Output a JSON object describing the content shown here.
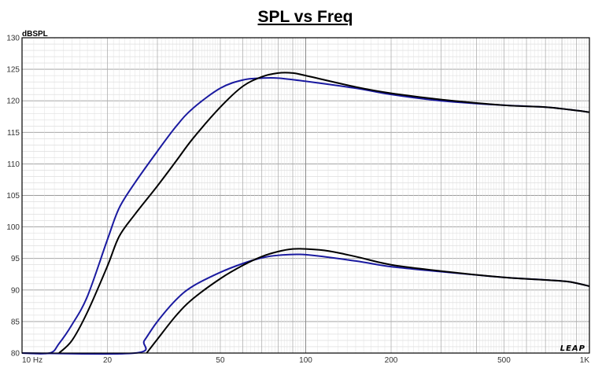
{
  "chart_data": {
    "type": "line",
    "title": "SPL vs Freq",
    "ylabel": "dBSPL",
    "xlabel": "",
    "x_scale": "log",
    "xlim": [
      10,
      1000
    ],
    "ylim": [
      80,
      130
    ],
    "grid": true,
    "x_ticks": [
      {
        "value": 10,
        "label": "10 Hz"
      },
      {
        "value": 20,
        "label": "20"
      },
      {
        "value": 50,
        "label": "50"
      },
      {
        "value": 100,
        "label": "100"
      },
      {
        "value": 200,
        "label": "200"
      },
      {
        "value": 500,
        "label": "500"
      },
      {
        "value": 1000,
        "label": "1K"
      }
    ],
    "y_ticks": [
      {
        "value": 80,
        "label": "80"
      },
      {
        "value": 85,
        "label": "85"
      },
      {
        "value": 90,
        "label": "90"
      },
      {
        "value": 95,
        "label": "95"
      },
      {
        "value": 100,
        "label": "100"
      },
      {
        "value": 105,
        "label": "105"
      },
      {
        "value": 110,
        "label": "110"
      },
      {
        "value": 115,
        "label": "115"
      },
      {
        "value": 120,
        "label": "120"
      },
      {
        "value": 125,
        "label": "125"
      },
      {
        "value": 130,
        "label": "130"
      }
    ],
    "watermark": "LEAP",
    "series": [
      {
        "color": "#1a1aa0",
        "points": [
          [
            10,
            80
          ],
          [
            12.5,
            80
          ],
          [
            13.5,
            81.5
          ],
          [
            15,
            84.5
          ],
          [
            17,
            89
          ],
          [
            20,
            98
          ],
          [
            22,
            103
          ],
          [
            25,
            107
          ],
          [
            30,
            112
          ],
          [
            35,
            116
          ],
          [
            40,
            118.8
          ],
          [
            50,
            122
          ],
          [
            60,
            123.3
          ],
          [
            70,
            123.6
          ],
          [
            80,
            123.6
          ],
          [
            100,
            123.1
          ],
          [
            150,
            122
          ],
          [
            200,
            121
          ],
          [
            300,
            120
          ],
          [
            500,
            119.3
          ],
          [
            700,
            119
          ],
          [
            850,
            118.6
          ],
          [
            1000,
            118.2
          ]
        ]
      },
      {
        "color": "#000000",
        "points": [
          [
            13.5,
            80
          ],
          [
            15,
            82
          ],
          [
            17,
            86.5
          ],
          [
            20,
            93.8
          ],
          [
            22,
            98.5
          ],
          [
            25,
            102
          ],
          [
            30,
            106.5
          ],
          [
            35,
            110.5
          ],
          [
            40,
            114
          ],
          [
            50,
            119
          ],
          [
            60,
            122.3
          ],
          [
            70,
            123.8
          ],
          [
            80,
            124.4
          ],
          [
            90,
            124.4
          ],
          [
            100,
            124
          ],
          [
            150,
            122.2
          ],
          [
            200,
            121.2
          ],
          [
            300,
            120.2
          ],
          [
            500,
            119.3
          ],
          [
            700,
            119
          ],
          [
            850,
            118.6
          ],
          [
            1000,
            118.2
          ]
        ]
      },
      {
        "color": "#1a1aa0",
        "points": [
          [
            10,
            80
          ],
          [
            25,
            80
          ],
          [
            27,
            82
          ],
          [
            30,
            85
          ],
          [
            35,
            88.5
          ],
          [
            40,
            90.6
          ],
          [
            50,
            92.8
          ],
          [
            60,
            94.2
          ],
          [
            70,
            95.1
          ],
          [
            80,
            95.5
          ],
          [
            100,
            95.6
          ],
          [
            150,
            94.6
          ],
          [
            200,
            93.7
          ],
          [
            300,
            92.9
          ],
          [
            500,
            92
          ],
          [
            700,
            91.6
          ],
          [
            850,
            91.3
          ],
          [
            1000,
            90.6
          ]
        ]
      },
      {
        "color": "#000000",
        "points": [
          [
            27.5,
            80
          ],
          [
            30,
            82.2
          ],
          [
            35,
            86
          ],
          [
            40,
            88.6
          ],
          [
            50,
            91.8
          ],
          [
            60,
            93.9
          ],
          [
            70,
            95.3
          ],
          [
            80,
            96.1
          ],
          [
            90,
            96.5
          ],
          [
            100,
            96.5
          ],
          [
            120,
            96.2
          ],
          [
            150,
            95.3
          ],
          [
            200,
            94
          ],
          [
            300,
            93
          ],
          [
            500,
            92
          ],
          [
            700,
            91.6
          ],
          [
            850,
            91.3
          ],
          [
            1000,
            90.6
          ]
        ]
      }
    ]
  }
}
